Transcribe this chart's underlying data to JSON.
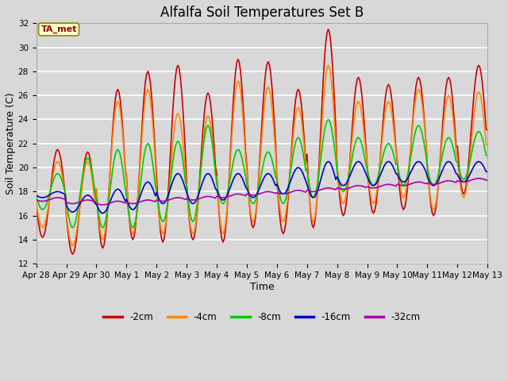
{
  "title": "Alfalfa Soil Temperatures Set B",
  "xlabel": "Time",
  "ylabel": "Soil Temperature (C)",
  "ylim": [
    12,
    32
  ],
  "yticks": [
    12,
    14,
    16,
    18,
    20,
    22,
    24,
    26,
    28,
    30,
    32
  ],
  "background_color": "#d8d8d8",
  "plot_bg_color": "#d8d8d8",
  "grid_color": "#ffffff",
  "line_colors": {
    "-2cm": "#cc0000",
    "-4cm": "#ff8800",
    "-8cm": "#00cc00",
    "-16cm": "#0000cc",
    "-32cm": "#aa00aa"
  },
  "line_widths": {
    "-2cm": 1.2,
    "-4cm": 1.2,
    "-8cm": 1.2,
    "-16cm": 1.2,
    "-32cm": 1.2
  },
  "TA_met_label": "TA_met",
  "TA_met_color": "#990000",
  "TA_met_bg": "#ffffcc",
  "legend_labels": [
    "-2cm",
    "-4cm",
    "-8cm",
    "-16cm",
    "-32cm"
  ],
  "x_tick_labels": [
    "Apr 28",
    "Apr 29",
    "Apr 30",
    "May 1",
    "May 2",
    "May 3",
    "May 4",
    "May 5",
    "May 6",
    "May 7",
    "May 8",
    "May 9",
    "May 10",
    "May 11",
    "May 12",
    "May 13"
  ],
  "title_fontsize": 12,
  "axis_fontsize": 7.5,
  "label_fontsize": 9
}
